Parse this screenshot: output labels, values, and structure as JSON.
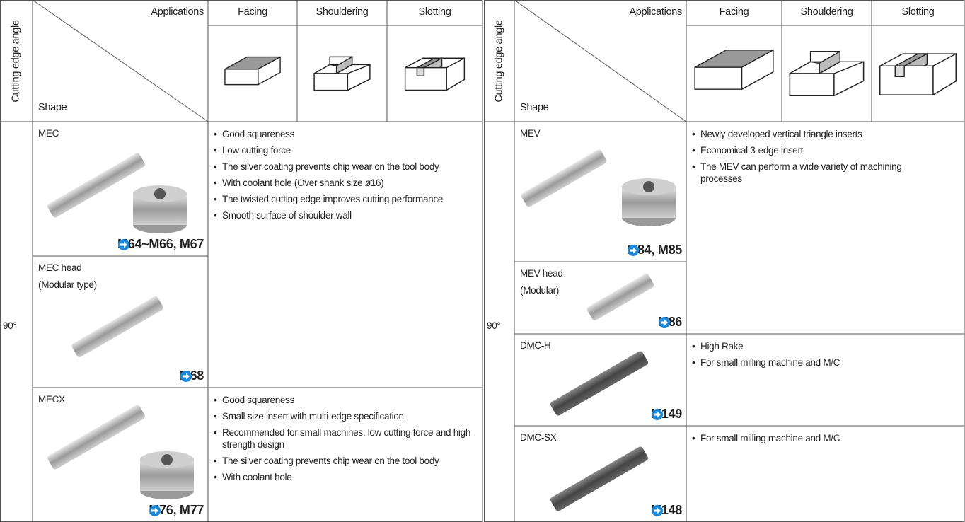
{
  "left": {
    "angle_header": "Cutting edge angle",
    "applications": "Applications",
    "shape": "Shape",
    "columns": [
      "Facing",
      "Shouldering",
      "Slotting"
    ],
    "angle": "90°",
    "tools": [
      {
        "name": "MEC",
        "ref": "M64~M66, M67"
      },
      {
        "name": "MEC head",
        "subname": "(Modular type)",
        "ref": "M68"
      },
      {
        "name": "MECX",
        "ref": "M76, M77"
      }
    ],
    "descriptions": [
      [
        "Good squareness",
        "Low cutting force",
        "The silver coating prevents chip wear on the tool body",
        "With coolant hole (Over shank size ø16)",
        "The twisted cutting edge improves cutting performance",
        "Smooth surface of shoulder wall"
      ],
      [
        "Good squareness",
        "Small size insert with multi-edge specification",
        "Recommended for small machines: low cutting force and high strength design",
        "The silver coating prevents chip wear on the tool body",
        "With coolant hole"
      ]
    ]
  },
  "right": {
    "angle_header": "Cutting edge angle",
    "applications": "Applications",
    "shape": "Shape",
    "columns": [
      "Facing",
      "Shouldering",
      "Slotting"
    ],
    "angle": "90°",
    "tools": [
      {
        "name": "MEV",
        "ref": "M84, M85"
      },
      {
        "name": "MEV head",
        "subname": "(Modular)",
        "ref": "M86"
      },
      {
        "name": "DMC-H",
        "ref": "M149"
      },
      {
        "name": "DMC-SX",
        "ref": "M148"
      }
    ],
    "descriptions": [
      [
        "Newly developed vertical triangle inserts",
        "Economical 3-edge insert",
        "The MEV can perform a wide variety of machining processes"
      ],
      [
        "High Rake",
        "For small milling machine and M/C"
      ],
      [
        "For small milling machine and M/C"
      ]
    ]
  }
}
